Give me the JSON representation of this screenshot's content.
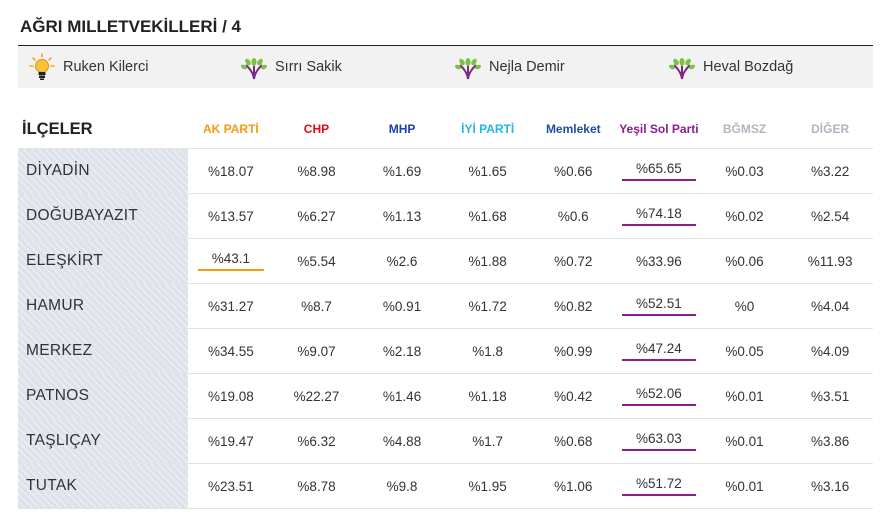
{
  "page": {
    "title": "AĞRI MILLETVEKİLLERİ / 4"
  },
  "candidates": [
    {
      "name": "Ruken Kilerci",
      "icon": "ak-parti-bulb-icon"
    },
    {
      "name": "Sırrı Sakik",
      "icon": "yesil-sol-leaf-icon"
    },
    {
      "name": "Nejla Demir",
      "icon": "yesil-sol-leaf-icon"
    },
    {
      "name": "Heval Bozdağ",
      "icon": "yesil-sol-leaf-icon"
    }
  ],
  "table": {
    "district_header": "İLÇELER",
    "parties": [
      {
        "label": "AK PARTİ",
        "color": "#f39c12"
      },
      {
        "label": "CHP",
        "color": "#e30a17"
      },
      {
        "label": "MHP",
        "color": "#1a3fa8"
      },
      {
        "label": "İYİ PARTİ",
        "color": "#24b6e6"
      },
      {
        "label": "Memleket",
        "color": "#1f4e9c"
      },
      {
        "label": "Yeşil Sol Parti",
        "color": "#8b1d8f"
      },
      {
        "label": "BĞMSZ",
        "color": "#b0b6c0"
      },
      {
        "label": "DİĞER",
        "color": "#b0b6c0"
      }
    ],
    "rows": [
      {
        "district": "DİYADİN",
        "values": [
          "%18.07",
          "%8.98",
          "%1.69",
          "%1.65",
          "%0.66",
          "%65.65",
          "%0.03",
          "%3.22"
        ],
        "winner": 5
      },
      {
        "district": "DOĞUBAYAZIT",
        "values": [
          "%13.57",
          "%6.27",
          "%1.13",
          "%1.68",
          "%0.6",
          "%74.18",
          "%0.02",
          "%2.54"
        ],
        "winner": 5
      },
      {
        "district": "ELEŞKİRT",
        "values": [
          "%43.1",
          "%5.54",
          "%2.6",
          "%1.88",
          "%0.72",
          "%33.96",
          "%0.06",
          "%11.93"
        ],
        "winner": 0
      },
      {
        "district": "HAMUR",
        "values": [
          "%31.27",
          "%8.7",
          "%0.91",
          "%1.72",
          "%0.82",
          "%52.51",
          "%0",
          "%4.04"
        ],
        "winner": 5
      },
      {
        "district": "MERKEZ",
        "values": [
          "%34.55",
          "%9.07",
          "%2.18",
          "%1.8",
          "%0.99",
          "%47.24",
          "%0.05",
          "%4.09"
        ],
        "winner": 5
      },
      {
        "district": "PATNOS",
        "values": [
          "%19.08",
          "%22.27",
          "%1.46",
          "%1.18",
          "%0.42",
          "%52.06",
          "%0.01",
          "%3.51"
        ],
        "winner": 5
      },
      {
        "district": "TAŞLIÇAY",
        "values": [
          "%19.47",
          "%6.32",
          "%4.88",
          "%1.7",
          "%0.68",
          "%63.03",
          "%0.01",
          "%3.86"
        ],
        "winner": 5
      },
      {
        "district": "TUTAK",
        "values": [
          "%23.51",
          "%8.78",
          "%9.8",
          "%1.95",
          "%1.06",
          "%51.72",
          "%0.01",
          "%3.16"
        ],
        "winner": 5
      }
    ]
  }
}
